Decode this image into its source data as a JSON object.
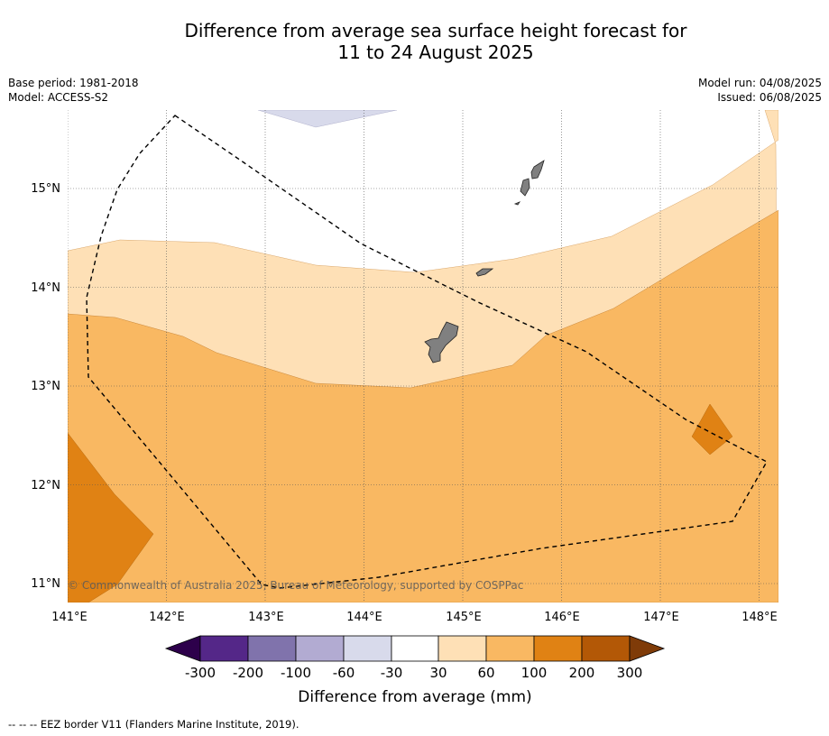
{
  "title": {
    "line1": "Difference from average sea surface height forecast for",
    "line2": "11 to 24 August 2025"
  },
  "meta_left": {
    "base_period": "Base period: 1981-2018",
    "model": "Model: ACCESS-S2"
  },
  "meta_right": {
    "model_run": "Model run: 04/08/2025",
    "issued": "Issued: 06/08/2025"
  },
  "map": {
    "lon_range": [
      141,
      148.2
    ],
    "lat_range": [
      10.8,
      15.8
    ],
    "lon_ticks": [
      "141°E",
      "142°E",
      "143°E",
      "144°E",
      "145°E",
      "146°E",
      "147°E",
      "148°E"
    ],
    "lat_ticks": [
      "11°N",
      "12°N",
      "13°N",
      "14°N",
      "15°N"
    ],
    "copyright": "© Commonwealth of Australia 2025, Bureau of Meteorology, supported by COSPPac"
  },
  "colorbar": {
    "labels": [
      "-300",
      "-200",
      "-100",
      "-60",
      "-30",
      "30",
      "60",
      "100",
      "200",
      "300"
    ],
    "title": "Difference from average (mm)",
    "colors": {
      "below_min": "#2d004b",
      "bins": [
        "#542788",
        "#8073ac",
        "#b2abd2",
        "#d8daeb",
        "#ffffff",
        "#fee0b6",
        "#f9b862",
        "#e08214",
        "#b35806"
      ],
      "above_max": "#7f3b08"
    }
  },
  "footer": {
    "legend_text": "--  --  -- EEZ border V11 (Flanders Marine Institute, 2019)."
  }
}
